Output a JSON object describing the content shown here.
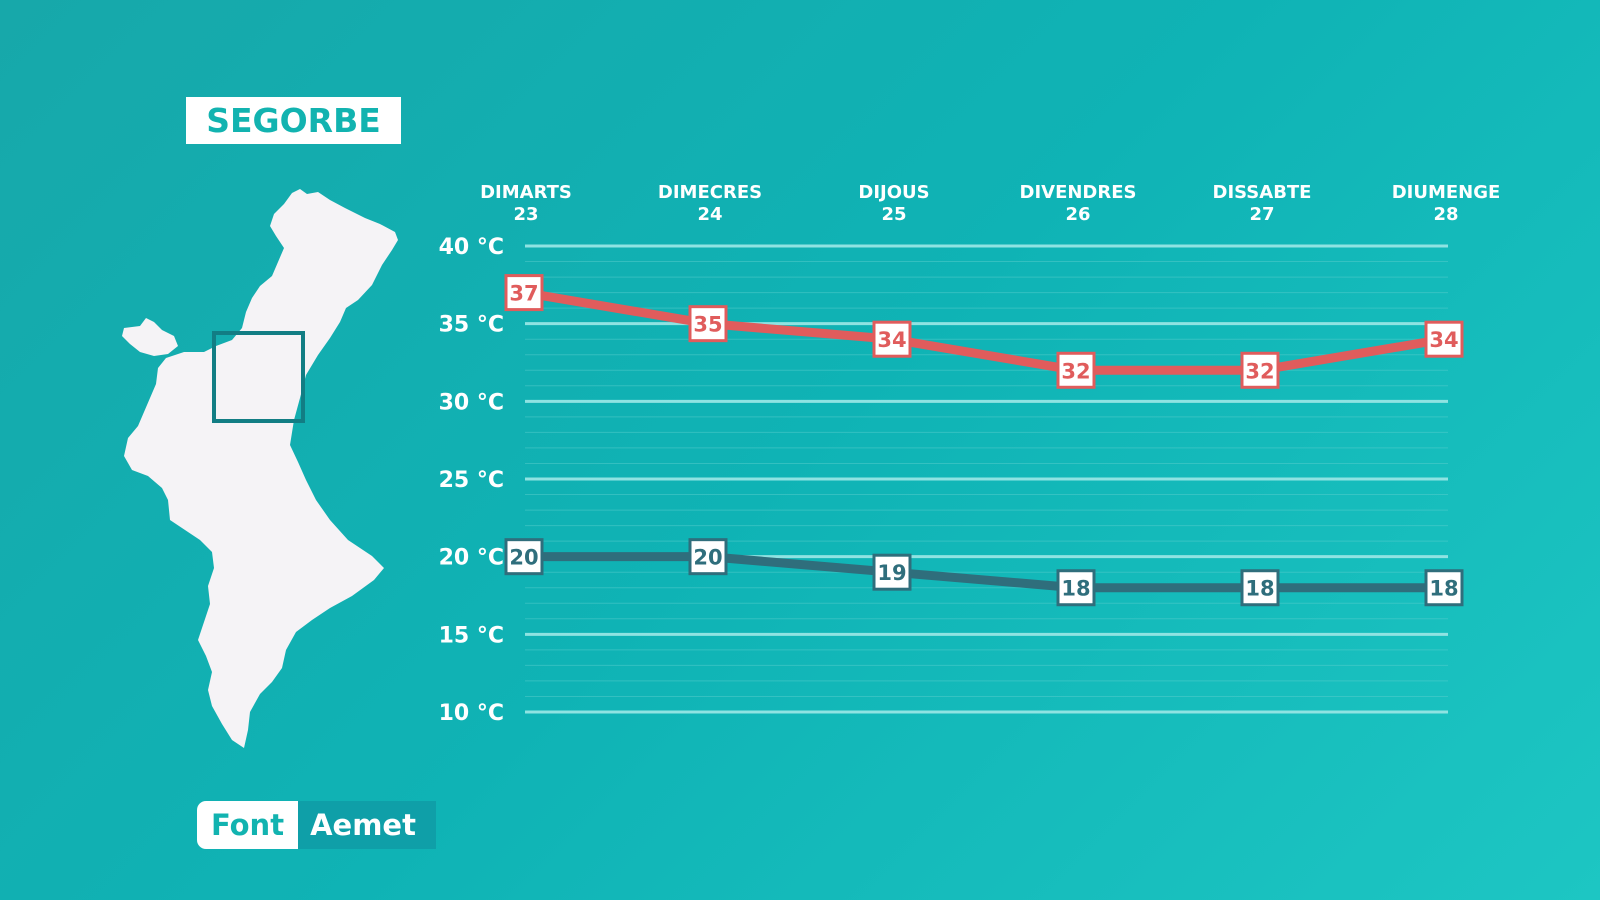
{
  "location": "SEGORBE",
  "source": {
    "label": "Font",
    "value": "Aemet"
  },
  "colors": {
    "background": "#13b0b1",
    "max_line": "#e05c5c",
    "min_line": "#2f6e7c",
    "gridline": "#8fe3e2"
  },
  "map": {
    "icon": "valencia-region-map-icon",
    "highlight": "segorbe-area-marker"
  },
  "chart_data": {
    "type": "line",
    "categories": [
      {
        "day": "DIMARTS",
        "date": "23"
      },
      {
        "day": "DIMECRES",
        "date": "24"
      },
      {
        "day": "DIJOUS",
        "date": "25"
      },
      {
        "day": "DIVENDRES",
        "date": "26"
      },
      {
        "day": "DISSABTE",
        "date": "27"
      },
      {
        "day": "DIUMENGE",
        "date": "28"
      }
    ],
    "series": [
      {
        "values": [
          37,
          35,
          34,
          32,
          32,
          34
        ],
        "color": "#e05c5c"
      },
      {
        "values": [
          20,
          20,
          19,
          18,
          18,
          18
        ],
        "color": "#2f6e7c"
      }
    ],
    "ylim": [
      10,
      40
    ],
    "yticks": [
      "10 °C",
      "15 °C",
      "20 °C",
      "25 °C",
      "30 °C",
      "35 °C",
      "40 °C"
    ],
    "ytick_values": [
      10,
      15,
      20,
      25,
      30,
      35,
      40
    ],
    "grid": true,
    "minor_grid": true
  }
}
